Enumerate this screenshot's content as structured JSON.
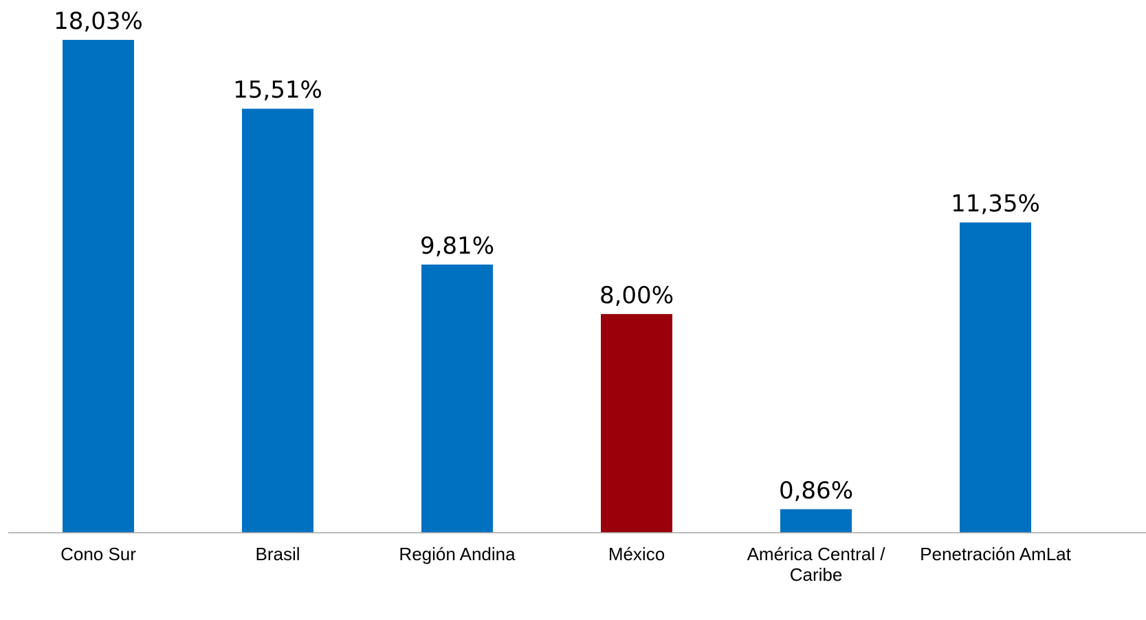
{
  "chart_data": {
    "type": "bar",
    "categories": [
      [
        "Cono Sur"
      ],
      [
        "Brasil"
      ],
      [
        "Región Andina"
      ],
      [
        "México"
      ],
      [
        "América Central /",
        "Caribe"
      ],
      [
        "Penetración AmLat"
      ]
    ],
    "values": [
      18.03,
      15.51,
      9.81,
      8.0,
      0.86,
      11.35
    ],
    "value_labels": [
      "18,03%",
      "15,51%",
      "9,81%",
      "8,00%",
      "0,86%",
      "11,35%"
    ],
    "bar_colors": [
      "#0070C0",
      "#0070C0",
      "#0070C0",
      "#990009",
      "#0070C0",
      "#0070C0"
    ],
    "axis_color": "#A6A6A6",
    "title": "",
    "xlabel": "",
    "ylabel": "",
    "ylim": [
      0,
      18.03
    ],
    "grid": false,
    "legend": "none"
  }
}
